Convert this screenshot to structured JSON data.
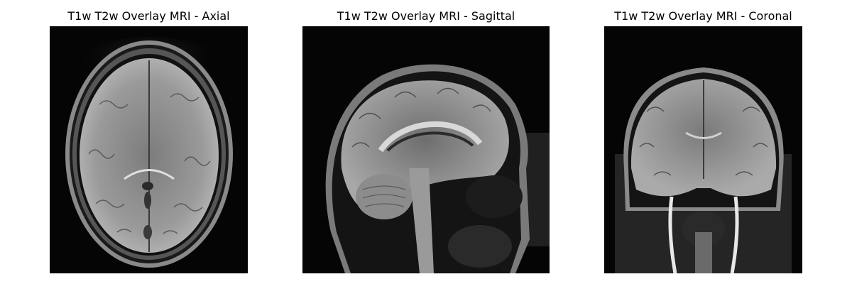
{
  "panels": [
    {
      "title": "T1w T2w Overlay MRI - Axial",
      "view": "axial",
      "image": "axial brain slice, grayscale MRI on black background"
    },
    {
      "title": "T1w T2w Overlay MRI - Sagittal",
      "view": "sagittal",
      "image": "sagittal head slice, grayscale MRI on black background"
    },
    {
      "title": "T1w T2w Overlay MRI - Coronal",
      "view": "coronal",
      "image": "coronal head slice, grayscale MRI on black background"
    }
  ],
  "colors": {
    "background": "#ffffff",
    "image_background": "#000000",
    "title_text": "#000000"
  }
}
